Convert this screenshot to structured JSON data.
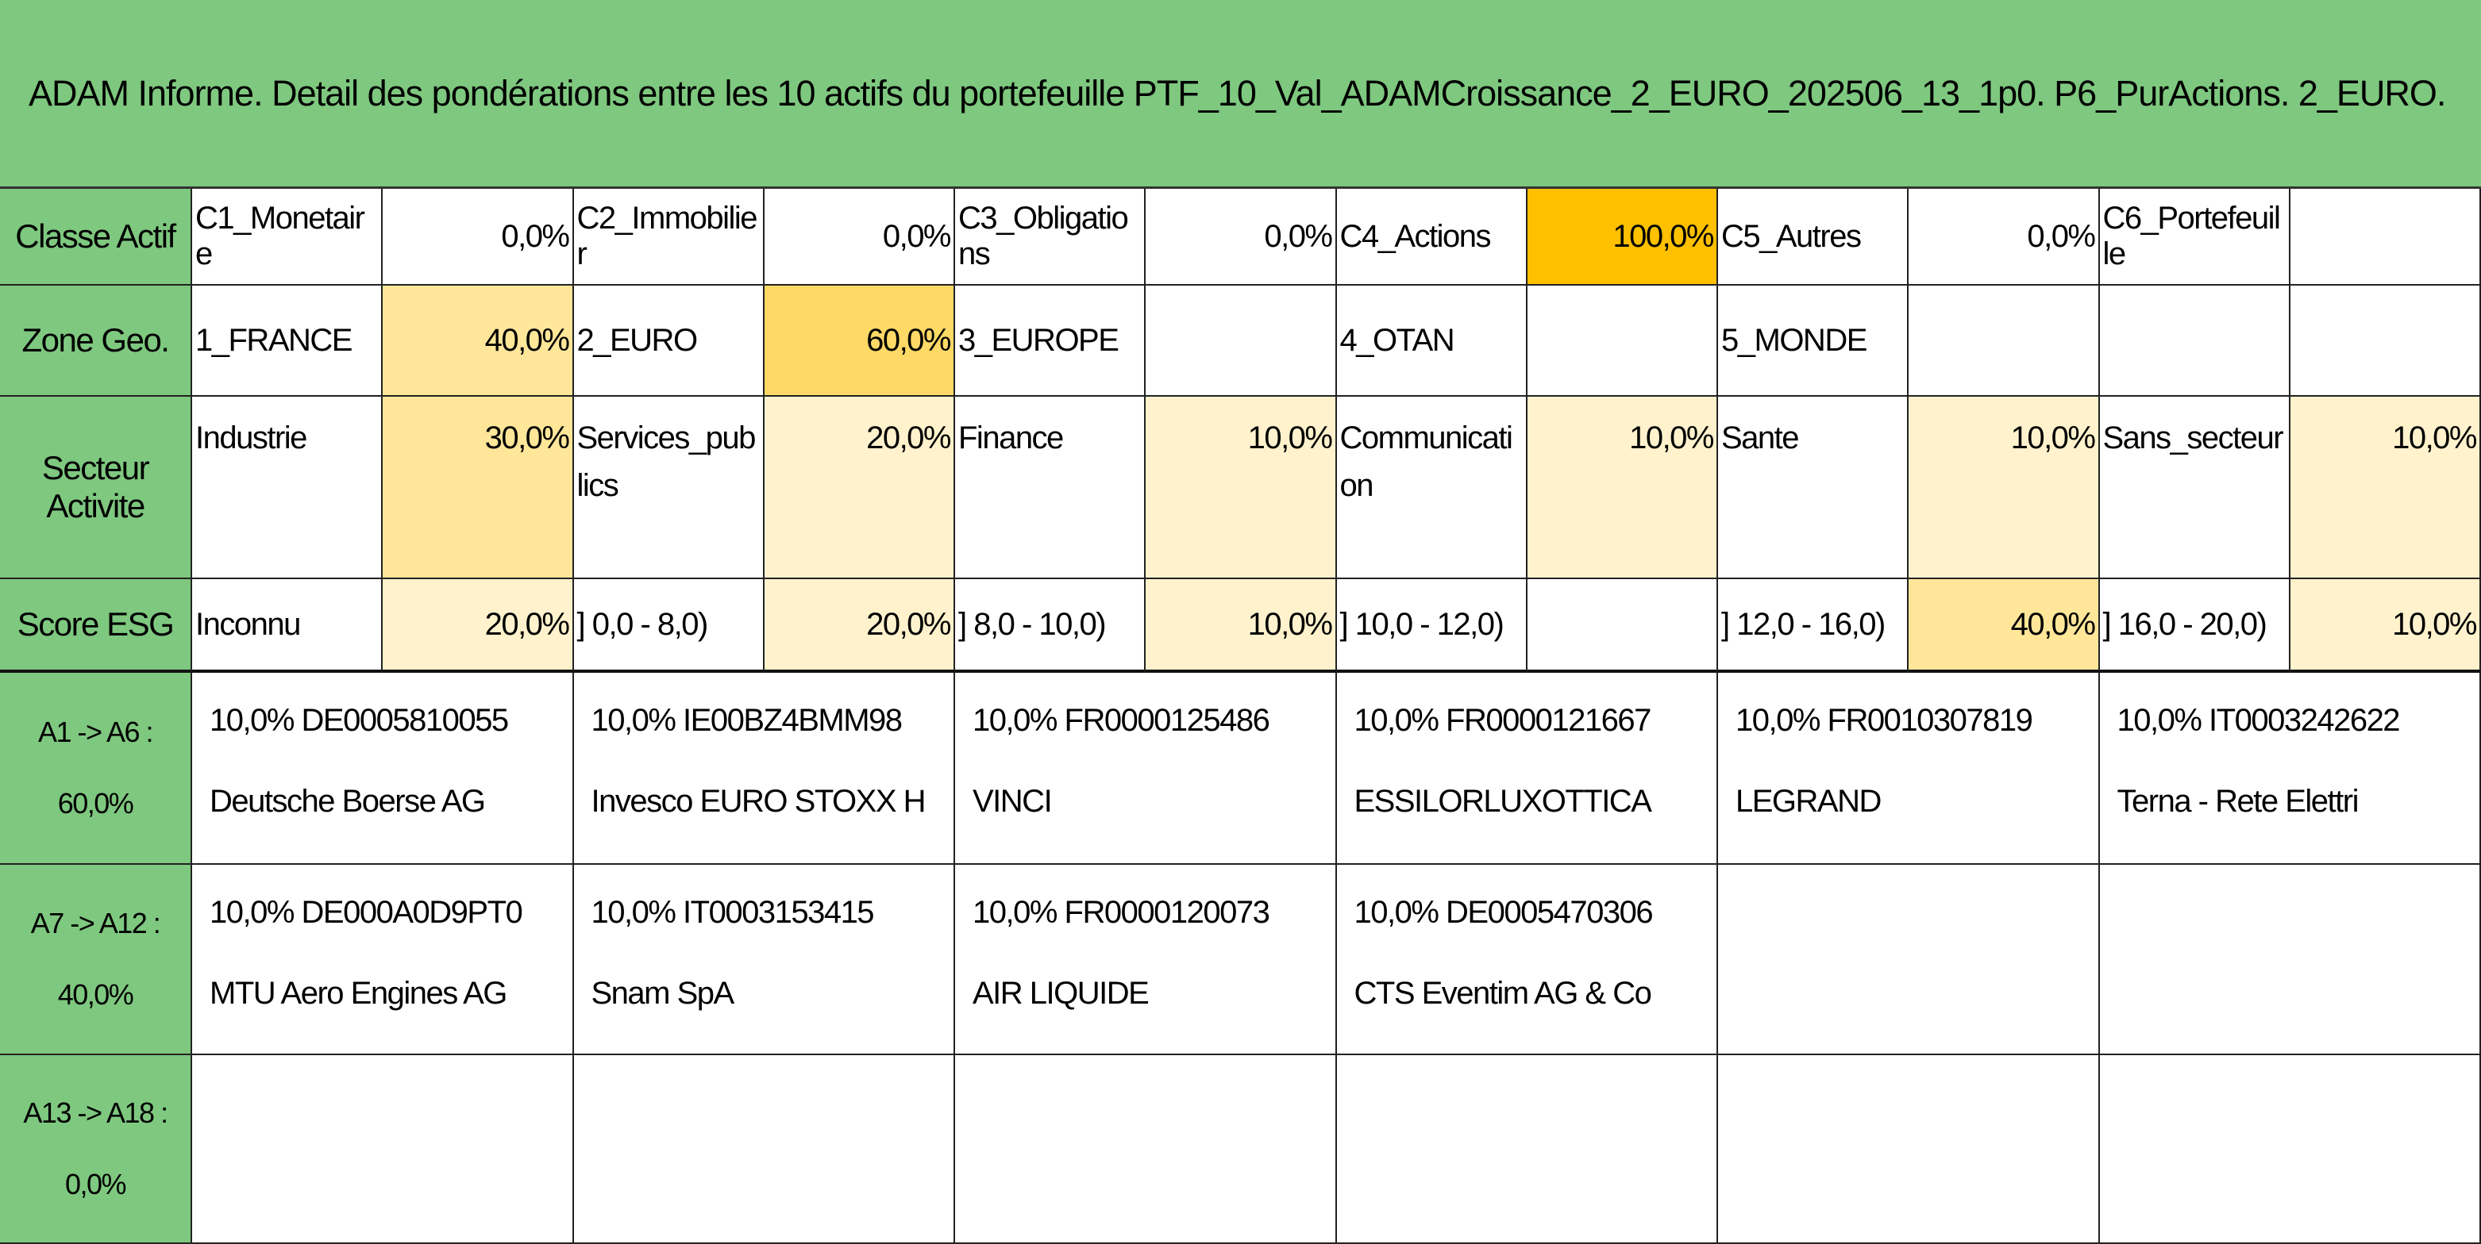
{
  "title": "ADAM Informe. Detail des pondérations entre les 10 actifs du portefeuille PTF_10_Val_ADAMCroissance_2_EURO_202506_13_1p0. P6_PurActions. 2_EURO.",
  "rows": [
    {
      "label": "Classe Actif",
      "cells": [
        {
          "name": "C1_Monetaire",
          "value": "0,0%"
        },
        {
          "name": "C2_Immobilier",
          "value": "0,0%"
        },
        {
          "name": "C3_Obligations",
          "value": "0,0%"
        },
        {
          "name": "C4_Actions",
          "value": "100,0%",
          "color": "#ffc000"
        },
        {
          "name": "C5_Autres",
          "value": "0,0%"
        },
        {
          "name": "C6_Portefeuille"
        }
      ]
    },
    {
      "label": "Zone Geo.",
      "cells": [
        {
          "name": "1_FRANCE",
          "value": "40,0%",
          "color": "#ffe699"
        },
        {
          "name": "2_EURO",
          "value": "60,0%",
          "color": "#ffd966"
        },
        {
          "name": "3_EUROPE"
        },
        {
          "name": "4_OTAN"
        },
        {
          "name": "5_MONDE"
        }
      ]
    },
    {
      "label": "Secteur Activite",
      "cells": [
        {
          "name": "Industrie",
          "value": "30,0%",
          "color": "#ffe699"
        },
        {
          "name": "Services_publics",
          "value": "20,0%",
          "color": "#fff2cc"
        },
        {
          "name": "Finance",
          "value": "10,0%",
          "color": "#fff2cc"
        },
        {
          "name": "Communication",
          "value": "10,0%",
          "color": "#fff2cc"
        },
        {
          "name": "Sante",
          "value": "10,0%",
          "color": "#fff2cc"
        },
        {
          "name": "Sans_secteur",
          "value": "10,0%",
          "color": "#fff2cc"
        }
      ]
    },
    {
      "label": "Score ESG",
      "cells": [
        {
          "name": "Inconnu",
          "value": "20,0%",
          "color": "#fff2cc"
        },
        {
          "name": "] 0,0 - 8,0)",
          "value": "20,0%",
          "color": "#fff2cc"
        },
        {
          "name": "] 8,0 - 10,0)",
          "value": "10,0%",
          "color": "#fff2cc"
        },
        {
          "name": "] 10,0 - 12,0)"
        },
        {
          "name": "] 12,0 - 16,0)",
          "value": "40,0%",
          "color": "#ffe699"
        },
        {
          "name": "] 16,0 - 20,0)",
          "value": "10,0%",
          "color": "#fff2cc"
        }
      ]
    }
  ],
  "assets": [
    {
      "label": "A1 -> A6 :",
      "total": "60,0%",
      "items": [
        {
          "weight": "10,0%",
          "isin": "DE0005810055",
          "name": "Deutsche Boerse AG"
        },
        {
          "weight": "10,0%",
          "isin": "IE00BZ4BMM98",
          "name": "Invesco EURO STOXX H"
        },
        {
          "weight": "10,0%",
          "isin": "FR0000125486",
          "name": "VINCI"
        },
        {
          "weight": "10,0%",
          "isin": "FR0000121667",
          "name": "ESSILORLUXOTTICA"
        },
        {
          "weight": "10,0%",
          "isin": "FR0010307819",
          "name": "LEGRAND"
        },
        {
          "weight": "10,0%",
          "isin": "IT0003242622",
          "name": "Terna - Rete Elettri"
        }
      ]
    },
    {
      "label": "A7 -> A12 :",
      "total": "40,0%",
      "items": [
        {
          "weight": "10,0%",
          "isin": "DE000A0D9PT0",
          "name": "MTU Aero Engines AG"
        },
        {
          "weight": "10,0%",
          "isin": "IT0003153415",
          "name": "Snam SpA"
        },
        {
          "weight": "10,0%",
          "isin": "FR0000120073",
          "name": "AIR LIQUIDE"
        },
        {
          "weight": "10,0%",
          "isin": "DE0005470306",
          "name": "CTS Eventim AG & Co"
        }
      ]
    },
    {
      "label": "A13 -> A18 :",
      "total": "0,0%",
      "items": []
    }
  ]
}
